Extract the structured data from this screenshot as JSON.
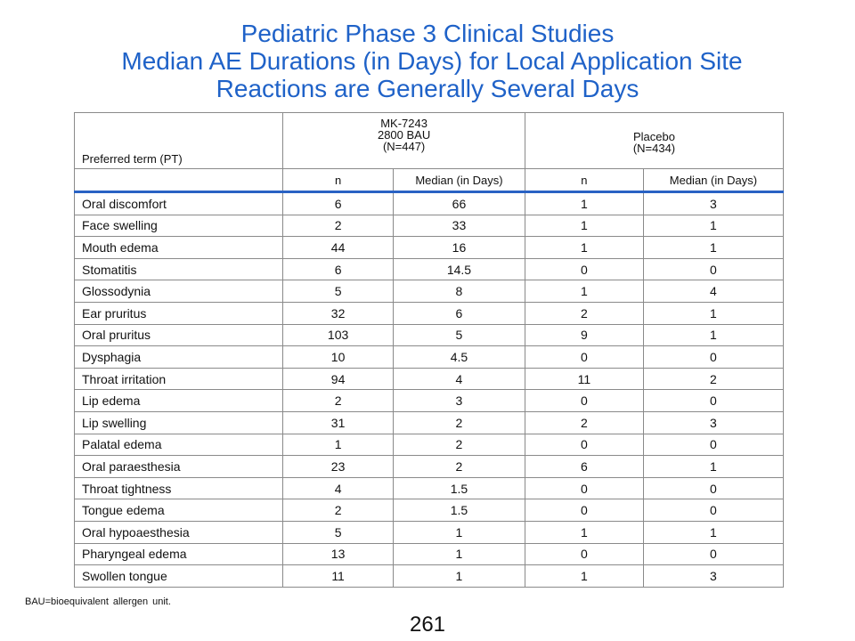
{
  "title": {
    "line1": "Pediatric Phase 3 Clinical Studies",
    "line2": "Median AE Durations (in Days) for Local Application Site",
    "line3": "Reactions are Generally Several Days"
  },
  "table": {
    "header": {
      "preferred_term": "Preferred term (PT)",
      "group1": {
        "line1": "MK-7243",
        "line2": "2800 BAU",
        "line3": "(N=447)"
      },
      "group2": {
        "line1": "Placebo",
        "line2": "(N=434)"
      },
      "n_label": "n",
      "median_label": "Median (in Days)"
    },
    "rows": [
      {
        "term": "Oral discomfort",
        "mk_n": "6",
        "mk_median": "66",
        "pb_n": "1",
        "pb_median": "3"
      },
      {
        "term": "Face swelling",
        "mk_n": "2",
        "mk_median": "33",
        "pb_n": "1",
        "pb_median": "1"
      },
      {
        "term": "Mouth edema",
        "mk_n": "44",
        "mk_median": "16",
        "pb_n": "1",
        "pb_median": "1"
      },
      {
        "term": "Stomatitis",
        "mk_n": "6",
        "mk_median": "14.5",
        "pb_n": "0",
        "pb_median": "0"
      },
      {
        "term": "Glossodynia",
        "mk_n": "5",
        "mk_median": "8",
        "pb_n": "1",
        "pb_median": "4"
      },
      {
        "term": "Ear pruritus",
        "mk_n": "32",
        "mk_median": "6",
        "pb_n": "2",
        "pb_median": "1"
      },
      {
        "term": "Oral pruritus",
        "mk_n": "103",
        "mk_median": "5",
        "pb_n": "9",
        "pb_median": "1"
      },
      {
        "term": "Dysphagia",
        "mk_n": "10",
        "mk_median": "4.5",
        "pb_n": "0",
        "pb_median": "0"
      },
      {
        "term": "Throat  irritation",
        "mk_n": "94",
        "mk_median": "4",
        "pb_n": "11",
        "pb_median": "2"
      },
      {
        "term": "Lip edema",
        "mk_n": "2",
        "mk_median": "3",
        "pb_n": "0",
        "pb_median": "0"
      },
      {
        "term": "Lip swelling",
        "mk_n": "31",
        "mk_median": "2",
        "pb_n": "2",
        "pb_median": "3"
      },
      {
        "term": "Palatal edema",
        "mk_n": "1",
        "mk_median": "2",
        "pb_n": "0",
        "pb_median": "0"
      },
      {
        "term": "Oral paraesthesia",
        "mk_n": "23",
        "mk_median": "2",
        "pb_n": "6",
        "pb_median": "1"
      },
      {
        "term": "Throat tightness",
        "mk_n": "4",
        "mk_median": "1.5",
        "pb_n": "0",
        "pb_median": "0"
      },
      {
        "term": "Tongue  edema",
        "mk_n": "2",
        "mk_median": "1.5",
        "pb_n": "0",
        "pb_median": "0"
      },
      {
        "term": "Oral hypoaesthesia",
        "mk_n": "5",
        "mk_median": "1",
        "pb_n": "1",
        "pb_median": "1"
      },
      {
        "term": "Pharyngeal edema",
        "mk_n": "13",
        "mk_median": "1",
        "pb_n": "0",
        "pb_median": "0"
      },
      {
        "term": "Swollen tongue",
        "mk_n": "11",
        "mk_median": "1",
        "pb_n": "1",
        "pb_median": "3"
      }
    ]
  },
  "footnote": "BAU=bioequivalent  allergen unit.",
  "page_number": "261"
}
